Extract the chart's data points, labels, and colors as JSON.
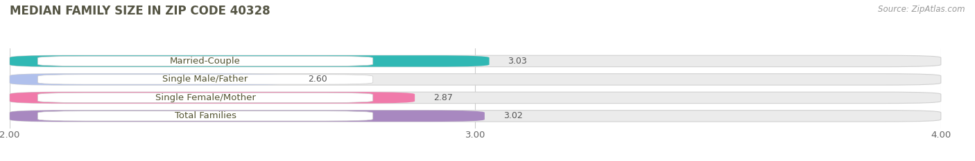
{
  "title": "MEDIAN FAMILY SIZE IN ZIP CODE 40328",
  "source": "Source: ZipAtlas.com",
  "categories": [
    "Married-Couple",
    "Single Male/Father",
    "Single Female/Mother",
    "Total Families"
  ],
  "values": [
    3.03,
    2.6,
    2.87,
    3.02
  ],
  "colors": [
    "#30b8b4",
    "#b0c0ec",
    "#f07aaa",
    "#a888c0"
  ],
  "xlim": [
    2.0,
    4.0
  ],
  "xticks": [
    2.0,
    3.0,
    4.0
  ],
  "bar_height": 0.62,
  "background_color": "#ffffff",
  "bar_bg_color": "#ebebeb",
  "title_fontsize": 12,
  "label_fontsize": 9.5,
  "value_fontsize": 9,
  "source_fontsize": 8.5
}
